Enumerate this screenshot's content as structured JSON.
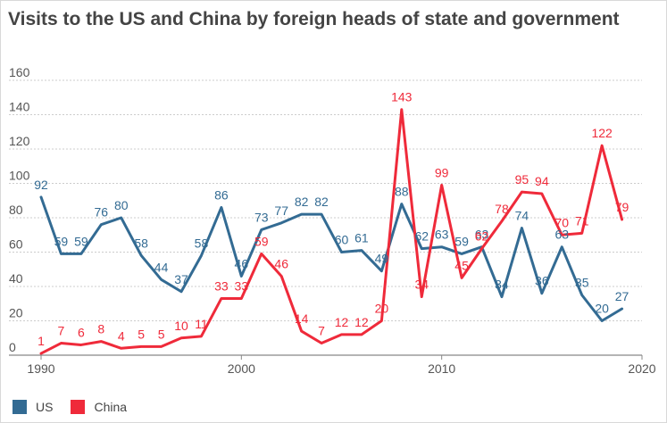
{
  "chart_data": {
    "type": "line",
    "title": "Visits to the US and China by foreign heads of state and government",
    "xlabel": "",
    "ylabel": "",
    "xlim": [
      1990,
      2020
    ],
    "ylim": [
      0,
      160
    ],
    "x_ticks": [
      1990,
      2000,
      2010,
      2020
    ],
    "y_ticks": [
      0,
      20,
      40,
      60,
      80,
      100,
      120,
      140,
      160
    ],
    "grid": true,
    "legend_position": "bottom-left",
    "x": [
      1990,
      1991,
      1992,
      1993,
      1994,
      1995,
      1996,
      1997,
      1998,
      1999,
      2000,
      2001,
      2002,
      2003,
      2004,
      2005,
      2006,
      2007,
      2008,
      2009,
      2010,
      2011,
      2012,
      2013,
      2014,
      2015,
      2016,
      2017,
      2018,
      2019
    ],
    "series": [
      {
        "name": "US",
        "color": "#336b93",
        "values": [
          92,
          59,
          59,
          76,
          80,
          58,
          44,
          37,
          58,
          86,
          46,
          73,
          77,
          82,
          82,
          60,
          61,
          49,
          88,
          62,
          63,
          59,
          63,
          34,
          74,
          36,
          63,
          35,
          20,
          27
        ]
      },
      {
        "name": "China",
        "color": "#ef2a3a",
        "values": [
          1,
          7,
          6,
          8,
          4,
          5,
          5,
          10,
          11,
          33,
          33,
          59,
          46,
          14,
          7,
          12,
          12,
          20,
          143,
          34,
          99,
          45,
          62,
          78,
          95,
          94,
          70,
          71,
          122,
          79
        ]
      }
    ]
  }
}
